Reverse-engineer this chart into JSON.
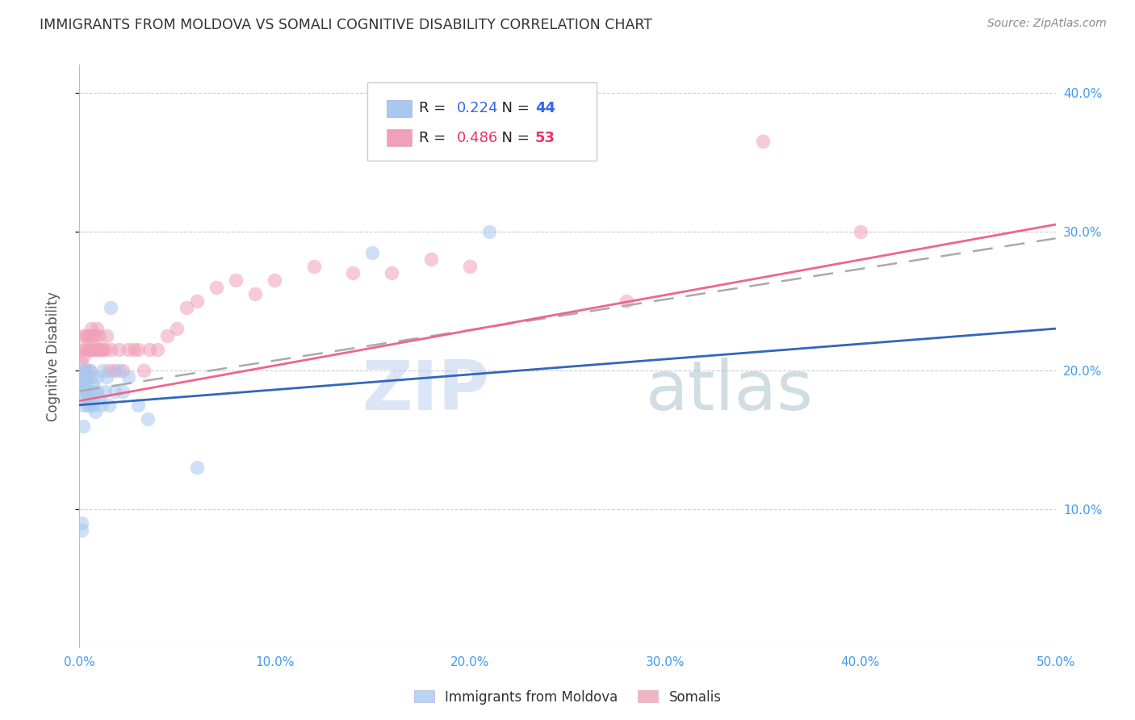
{
  "title": "IMMIGRANTS FROM MOLDOVA VS SOMALI COGNITIVE DISABILITY CORRELATION CHART",
  "source": "Source: ZipAtlas.com",
  "ylabel": "Cognitive Disability",
  "xlim": [
    0.0,
    0.5
  ],
  "ylim": [
    0.0,
    0.42
  ],
  "xticks": [
    0.0,
    0.1,
    0.2,
    0.3,
    0.4,
    0.5
  ],
  "xtick_labels": [
    "0.0%",
    "10.0%",
    "20.0%",
    "30.0%",
    "40.0%",
    "50.0%"
  ],
  "yticks": [
    0.1,
    0.2,
    0.3,
    0.4
  ],
  "ytick_labels": [
    "10.0%",
    "20.0%",
    "30.0%",
    "40.0%"
  ],
  "moldova_color": "#A8C8F0",
  "somali_color": "#F0A0B8",
  "moldova_R": 0.224,
  "moldova_N": 44,
  "somali_R": 0.486,
  "somali_N": 53,
  "legend_label_moldova": "Immigrants from Moldova",
  "legend_label_somali": "Somalis",
  "watermark_zip": "ZIP",
  "watermark_atlas": "atlas",
  "background_color": "#FFFFFF",
  "grid_color": "#CCCCCC",
  "title_color": "#333333",
  "axis_label_color": "#555555",
  "tick_label_color": "#4499EE",
  "moldova_line_color": "#AABBCC",
  "somali_line_color": "#EE6688",
  "moldova_line_solid_color": "#3366AA",
  "legend_text_color": "#334499",
  "moldova_x": [
    0.001,
    0.001,
    0.001,
    0.002,
    0.002,
    0.002,
    0.002,
    0.003,
    0.003,
    0.003,
    0.003,
    0.004,
    0.004,
    0.004,
    0.005,
    0.005,
    0.005,
    0.006,
    0.006,
    0.007,
    0.007,
    0.008,
    0.008,
    0.009,
    0.009,
    0.01,
    0.011,
    0.012,
    0.013,
    0.014,
    0.015,
    0.016,
    0.018,
    0.02,
    0.022,
    0.025,
    0.03,
    0.035,
    0.002,
    0.001,
    0.06,
    0.001,
    0.21,
    0.15
  ],
  "moldova_y": [
    0.185,
    0.19,
    0.195,
    0.185,
    0.19,
    0.2,
    0.175,
    0.185,
    0.19,
    0.2,
    0.195,
    0.175,
    0.185,
    0.195,
    0.175,
    0.185,
    0.2,
    0.18,
    0.195,
    0.175,
    0.19,
    0.17,
    0.185,
    0.185,
    0.195,
    0.18,
    0.175,
    0.2,
    0.185,
    0.195,
    0.175,
    0.245,
    0.185,
    0.2,
    0.185,
    0.195,
    0.175,
    0.165,
    0.16,
    0.09,
    0.13,
    0.085,
    0.3,
    0.285
  ],
  "somali_x": [
    0.001,
    0.001,
    0.002,
    0.002,
    0.003,
    0.003,
    0.003,
    0.004,
    0.004,
    0.005,
    0.005,
    0.005,
    0.006,
    0.006,
    0.007,
    0.007,
    0.008,
    0.008,
    0.009,
    0.009,
    0.01,
    0.01,
    0.011,
    0.012,
    0.013,
    0.014,
    0.015,
    0.016,
    0.018,
    0.02,
    0.022,
    0.025,
    0.028,
    0.03,
    0.033,
    0.036,
    0.04,
    0.045,
    0.05,
    0.055,
    0.06,
    0.07,
    0.08,
    0.09,
    0.1,
    0.12,
    0.14,
    0.16,
    0.18,
    0.2,
    0.35,
    0.28,
    0.4
  ],
  "somali_y": [
    0.205,
    0.215,
    0.21,
    0.225,
    0.2,
    0.215,
    0.225,
    0.215,
    0.225,
    0.2,
    0.215,
    0.225,
    0.215,
    0.23,
    0.215,
    0.225,
    0.215,
    0.225,
    0.215,
    0.23,
    0.215,
    0.225,
    0.215,
    0.215,
    0.215,
    0.225,
    0.2,
    0.215,
    0.2,
    0.215,
    0.2,
    0.215,
    0.215,
    0.215,
    0.2,
    0.215,
    0.215,
    0.225,
    0.23,
    0.245,
    0.25,
    0.26,
    0.265,
    0.255,
    0.265,
    0.275,
    0.27,
    0.27,
    0.28,
    0.275,
    0.365,
    0.25,
    0.3
  ]
}
